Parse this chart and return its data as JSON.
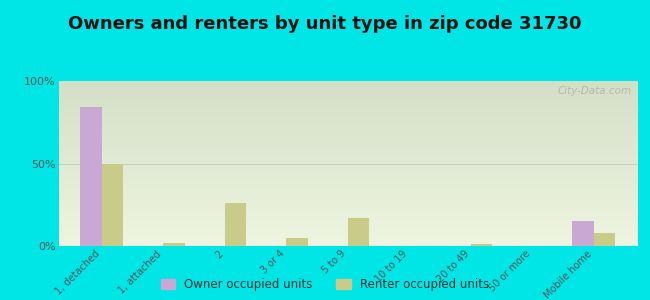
{
  "title": "Owners and renters by unit type in zip code 31730",
  "categories": [
    "1, detached",
    "1, attached",
    "2",
    "3 or 4",
    "5 to 9",
    "10 to 19",
    "20 to 49",
    "50 or more",
    "Mobile home"
  ],
  "owner_values": [
    84,
    0,
    0,
    0,
    0,
    0,
    0,
    0,
    15
  ],
  "renter_values": [
    50,
    2,
    26,
    5,
    17,
    0,
    1,
    0,
    8
  ],
  "owner_color": "#c9a8d4",
  "renter_color": "#c8cc88",
  "background_color": "#00e5e5",
  "plot_bg_color_top": "#d4dfc8",
  "plot_bg_color_bottom": "#eef5e0",
  "ylim": [
    0,
    100
  ],
  "yticks": [
    0,
    50,
    100
  ],
  "ytick_labels": [
    "0%",
    "50%",
    "100%"
  ],
  "bar_width": 0.35,
  "legend_owner": "Owner occupied units",
  "legend_renter": "Renter occupied units",
  "title_fontsize": 13,
  "watermark": "City-Data.com"
}
